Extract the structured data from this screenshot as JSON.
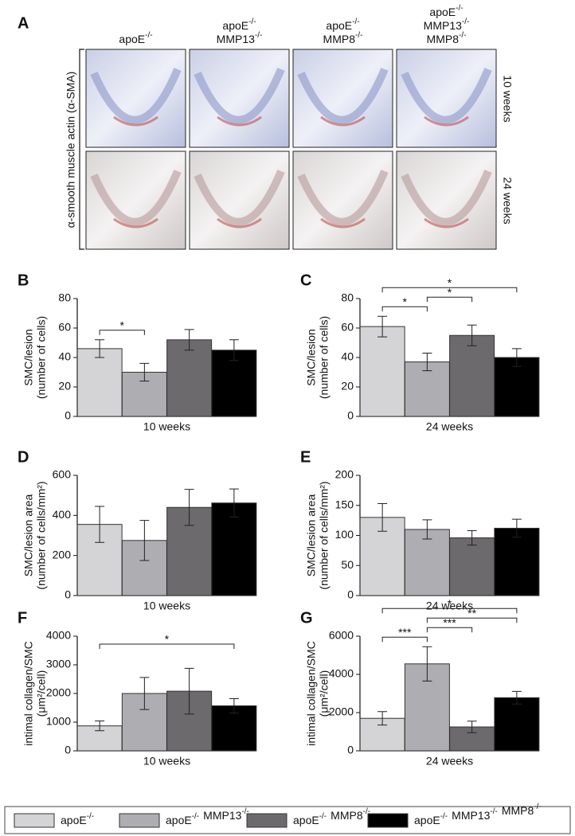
{
  "panel_a": {
    "label": "A",
    "columns": [
      [
        [
          [
            "apoE",
            "-/-"
          ]
        ]
      ],
      [
        [
          [
            "apoE",
            "-/-"
          ]
        ],
        [
          [
            "MMP13",
            "-/-"
          ]
        ]
      ],
      [
        [
          [
            "apoE",
            "-/-"
          ]
        ],
        [
          [
            "MMP8",
            "-/-"
          ]
        ]
      ],
      [
        [
          [
            "apoE",
            "-/-"
          ]
        ],
        [
          [
            "MMP13",
            "-/-"
          ]
        ],
        [
          [
            "MMP8",
            "-/-"
          ]
        ]
      ]
    ],
    "row_labels": [
      "10 weeks",
      "24 weeks"
    ],
    "y_label": "α-smooth muscle actin (α-SMA)"
  },
  "legend": [
    {
      "color": "#d4d4d6",
      "parts": [
        [
          "apoE",
          "-/-"
        ]
      ]
    },
    {
      "color": "#aeaeb2",
      "parts": [
        [
          "apoE",
          "-/-"
        ],
        [
          "MMP13",
          "-/-"
        ]
      ]
    },
    {
      "color": "#6d6a6e",
      "parts": [
        [
          "apoE",
          "-/-"
        ],
        [
          "MMP8",
          "-/-"
        ]
      ]
    },
    {
      "color": "#000000",
      "parts": [
        [
          "apoE",
          "-/-"
        ],
        [
          "MMP13",
          "-/-"
        ],
        [
          "MMP8",
          "-/-"
        ]
      ]
    }
  ],
  "chart_data": [
    {
      "type": "bar",
      "panel": "B",
      "ylabel": [
        "SMC/lesion",
        "(number of cells)"
      ],
      "xlabel": "10 weeks",
      "colors": [
        "#d4d4d6",
        "#aeaeb2",
        "#6d6a6e",
        "#000000"
      ],
      "values": [
        46,
        30,
        52,
        45
      ],
      "errors": [
        6,
        6,
        7,
        7
      ],
      "ylim": [
        0,
        80
      ],
      "yticks": [
        0,
        20,
        40,
        60,
        80
      ],
      "significance": [
        {
          "from": 0,
          "to": 1,
          "label": "*"
        }
      ]
    },
    {
      "type": "bar",
      "panel": "C",
      "ylabel": [
        "SMC/lesion",
        "(number of cells)"
      ],
      "xlabel": "24 weeks",
      "colors": [
        "#d4d4d6",
        "#aeaeb2",
        "#6d6a6e",
        "#000000"
      ],
      "values": [
        61,
        37,
        55,
        40
      ],
      "errors": [
        7,
        6,
        7,
        6
      ],
      "ylim": [
        0,
        80
      ],
      "yticks": [
        0,
        20,
        40,
        60,
        80
      ],
      "significance": [
        {
          "from": 0,
          "to": 1,
          "label": "*"
        },
        {
          "from": 1,
          "to": 2,
          "label": "*"
        },
        {
          "from": 0,
          "to": 3,
          "label": "*"
        }
      ]
    },
    {
      "type": "bar",
      "panel": "D",
      "ylabel": [
        "SMC/lesion area",
        "(number of cells/mm²)"
      ],
      "xlabel": "10 weeks",
      "colors": [
        "#d4d4d6",
        "#aeaeb2",
        "#6d6a6e",
        "#000000"
      ],
      "values": [
        355,
        275,
        440,
        462
      ],
      "errors": [
        90,
        100,
        90,
        70
      ],
      "ylim": [
        0,
        600
      ],
      "yticks": [
        0,
        200,
        400,
        600
      ]
    },
    {
      "type": "bar",
      "panel": "E",
      "ylabel": [
        "SMC/lesion area",
        "(number of cells/mm²)"
      ],
      "xlabel": "24 weeks",
      "colors": [
        "#d4d4d6",
        "#aeaeb2",
        "#6d6a6e",
        "#000000"
      ],
      "values": [
        130,
        110,
        96,
        112
      ],
      "errors": [
        23,
        16,
        12,
        15
      ],
      "ylim": [
        0,
        200
      ],
      "yticks": [
        0,
        50,
        100,
        150,
        200
      ]
    },
    {
      "type": "bar",
      "panel": "F",
      "ylabel": [
        "intimal collagen/SMC",
        "(μm²/cell)"
      ],
      "xlabel": "10 weeks",
      "colors": [
        "#d4d4d6",
        "#aeaeb2",
        "#6d6a6e",
        "#000000"
      ],
      "values": [
        870,
        2000,
        2080,
        1570
      ],
      "errors": [
        170,
        560,
        800,
        250
      ],
      "ylim": [
        0,
        4000
      ],
      "yticks": [
        0,
        1000,
        2000,
        3000,
        4000
      ],
      "significance": [
        {
          "from": 0,
          "to": 3,
          "label": "*",
          "high": true
        }
      ]
    },
    {
      "type": "bar",
      "panel": "G",
      "ylabel": [
        "intimal collagen/SMC",
        "(μm²/cell)"
      ],
      "xlabel": "24 weeks",
      "colors": [
        "#d4d4d6",
        "#aeaeb2",
        "#6d6a6e",
        "#000000"
      ],
      "values": [
        1700,
        4550,
        1250,
        2780
      ],
      "errors": [
        350,
        900,
        300,
        330
      ],
      "ylim": [
        0,
        6000
      ],
      "yticks": [
        0,
        2000,
        4000,
        6000
      ],
      "significance": [
        {
          "from": 0,
          "to": 1,
          "label": "***"
        },
        {
          "from": 1,
          "to": 2,
          "label": "***"
        },
        {
          "from": 1,
          "to": 3,
          "label": "**"
        },
        {
          "from": 0,
          "to": 3,
          "label": "*"
        }
      ]
    }
  ]
}
